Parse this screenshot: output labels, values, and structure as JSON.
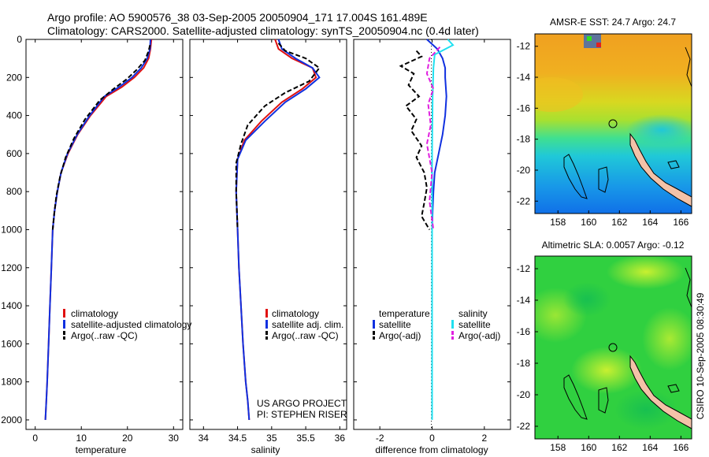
{
  "header": {
    "line1": "Argo profile: AO 5900576_38 03-Sep-2005 20050904_171 17.004S 161.489E",
    "line2": "Climatology: CARS2000. Satellite-adjusted climatology: synTS_20050904.nc (0.4d later)"
  },
  "colors": {
    "climatology": "#e01010",
    "satellite": "#1030e0",
    "argo": "#000000",
    "salinity_satellite": "#20e0f0",
    "salinity_argo": "#e020e0"
  },
  "footer": {
    "project": "US ARGO PROJECT",
    "pi": "PI: STEPHEN RISER",
    "stamp": "CSIRO 10-Sep-2005 08:30:49"
  },
  "chart_data": [
    {
      "type": "line",
      "title": "",
      "xlabel": "temperature",
      "ylabel": "",
      "xlim": [
        -2,
        32
      ],
      "ylim": [
        2050,
        0
      ],
      "xticks": [
        0,
        10,
        20,
        30
      ],
      "yticks": [
        0,
        200,
        400,
        600,
        800,
        1000,
        1200,
        1400,
        1600,
        1800,
        2000
      ],
      "legend": [
        "climatology",
        "satellite-adjusted climatology",
        "Argo(..raw -QC)"
      ],
      "series": [
        {
          "name": "climatology",
          "style": "solid",
          "color_key": "climatology",
          "x": [
            25.2,
            25.0,
            24.6,
            23.5,
            21.5,
            18.8,
            15.4,
            12.0,
            9.2,
            7.1,
            5.6,
            4.8,
            4.2,
            3.8,
            3.5,
            3.2,
            2.9,
            2.6,
            2.4,
            2.2
          ],
          "y": [
            0,
            50,
            100,
            150,
            200,
            250,
            300,
            400,
            500,
            600,
            700,
            800,
            900,
            1000,
            1200,
            1400,
            1600,
            1800,
            1900,
            2000
          ]
        },
        {
          "name": "satellite-adjusted climatology",
          "style": "solid",
          "color_key": "satellite",
          "x": [
            25.0,
            24.9,
            24.3,
            23.0,
            21.0,
            18.2,
            15.0,
            11.8,
            9.1,
            7.0,
            5.6,
            4.8,
            4.2,
            3.8,
            3.5,
            3.2,
            2.9,
            2.6,
            2.4,
            2.2
          ],
          "y": [
            0,
            50,
            100,
            150,
            200,
            250,
            300,
            400,
            500,
            600,
            700,
            800,
            900,
            1000,
            1200,
            1400,
            1600,
            1800,
            1900,
            2000
          ]
        },
        {
          "name": "Argo(..raw -QC)",
          "style": "dashed",
          "color_key": "argo",
          "x": [
            24.9,
            24.6,
            23.8,
            22.0,
            19.8,
            17.0,
            14.0,
            10.8,
            8.4,
            6.6,
            5.4,
            4.6,
            4.1,
            3.8
          ],
          "y": [
            30,
            60,
            110,
            160,
            210,
            260,
            320,
            420,
            520,
            620,
            720,
            820,
            920,
            1000
          ]
        }
      ]
    },
    {
      "type": "line",
      "title": "",
      "xlabel": "salinity",
      "ylabel": "",
      "xlim": [
        33.8,
        36.1
      ],
      "ylim": [
        2050,
        0
      ],
      "xticks": [
        34,
        34.5,
        35,
        35.5,
        36
      ],
      "yticks": [],
      "legend": [
        "climatology",
        "satellite adj. clim.",
        "Argo(..raw -QC)"
      ],
      "series": [
        {
          "name": "climatology",
          "style": "solid",
          "color_key": "climatology",
          "x": [
            35.05,
            35.1,
            35.3,
            35.6,
            35.65,
            35.45,
            35.15,
            34.85,
            34.6,
            34.5,
            34.48,
            34.5,
            34.52,
            34.55,
            34.58,
            34.62,
            34.65,
            34.67
          ],
          "y": [
            0,
            50,
            100,
            150,
            200,
            260,
            330,
            430,
            530,
            630,
            800,
            1000,
            1200,
            1400,
            1600,
            1800,
            1900,
            2000
          ]
        },
        {
          "name": "satellite adj. clim.",
          "style": "solid",
          "color_key": "satellite",
          "x": [
            35.1,
            35.15,
            35.35,
            35.6,
            35.7,
            35.5,
            35.2,
            34.9,
            34.62,
            34.5,
            34.48,
            34.5,
            34.52,
            34.55,
            34.58,
            34.62,
            34.65,
            34.67
          ],
          "y": [
            0,
            50,
            100,
            150,
            200,
            260,
            330,
            430,
            530,
            630,
            800,
            1000,
            1200,
            1400,
            1600,
            1800,
            1900,
            2000
          ]
        },
        {
          "name": "Argo(..raw -QC)",
          "style": "dashed",
          "color_key": "argo",
          "x": [
            35.1,
            35.2,
            35.5,
            35.7,
            35.55,
            35.2,
            34.9,
            34.65,
            34.55,
            34.48,
            34.48,
            34.5
          ],
          "y": [
            20,
            60,
            100,
            150,
            220,
            280,
            350,
            450,
            550,
            650,
            800,
            1000
          ]
        }
      ]
    },
    {
      "type": "line",
      "title": "",
      "xlabel": "difference from climatology",
      "ylabel": "",
      "xlim": [
        -3,
        3
      ],
      "ylim": [
        2050,
        0
      ],
      "xticks": [
        -2,
        0,
        2
      ],
      "yticks": [],
      "legend": [
        "temperature",
        "satellite",
        "Argo(-adj)",
        "salinity",
        "satellite",
        "Argo(-adj)"
      ],
      "series": [
        {
          "name": "temperature satellite",
          "style": "solid",
          "color_key": "satellite",
          "x": [
            -0.2,
            0.2,
            0.4,
            0.5,
            0.5,
            0.55,
            0.5,
            0.4,
            0.25,
            0.1,
            0.05,
            0.02,
            0.0,
            0.0,
            0.0
          ],
          "y": [
            0,
            50,
            100,
            150,
            200,
            300,
            400,
            500,
            600,
            700,
            800,
            900,
            1000,
            1200,
            1250
          ]
        },
        {
          "name": "temperature Argo(-adj)",
          "style": "dashed",
          "color_key": "argo",
          "x": [
            -0.6,
            -0.4,
            -1.2,
            -0.7,
            -0.9,
            -0.5,
            -1.0,
            -0.6,
            -0.8,
            -0.4,
            -0.6,
            -0.3,
            -0.2,
            -0.3,
            -0.4,
            -0.1
          ],
          "y": [
            60,
            90,
            140,
            180,
            240,
            300,
            350,
            420,
            480,
            560,
            620,
            700,
            780,
            860,
            930,
            1000
          ]
        },
        {
          "name": "salinity satellite",
          "style": "solid",
          "color_key": "salinity_satellite",
          "x": [
            0.6,
            0.8,
            0.1,
            0.05,
            0.02,
            0.0,
            0.0,
            0.0,
            0.0,
            0.0
          ],
          "y": [
            0,
            30,
            80,
            150,
            300,
            600,
            1000,
            1400,
            1800,
            2000
          ]
        },
        {
          "name": "salinity Argo(-adj)",
          "style": "dashed",
          "color_key": "salinity_argo",
          "x": [
            0.3,
            -0.1,
            -0.2,
            0.05,
            -0.15,
            -0.05,
            -0.2,
            0.0,
            -0.1,
            0.05
          ],
          "y": [
            40,
            100,
            180,
            260,
            340,
            450,
            550,
            700,
            850,
            1000
          ]
        }
      ]
    },
    {
      "type": "heatmap",
      "title": "AMSR-E SST: 24.7 Argo: 24.7",
      "xlabel": "",
      "ylabel": "",
      "xlim": [
        156.5,
        166.7
      ],
      "ylim": [
        -22.8,
        -11.2
      ],
      "xticks": [
        158,
        160,
        162,
        164,
        166
      ],
      "yticks": [
        -12,
        -14,
        -16,
        -18,
        -20,
        -22
      ],
      "profile_location": [
        161.489,
        -17.004
      ]
    },
    {
      "type": "heatmap",
      "title": "Altimetric SLA: 0.0057 Argo: -0.12",
      "xlabel": "",
      "ylabel": "",
      "xlim": [
        156.5,
        166.7
      ],
      "ylim": [
        -22.8,
        -11.2
      ],
      "xticks": [
        158,
        160,
        162,
        164,
        166
      ],
      "yticks": [
        -12,
        -14,
        -16,
        -18,
        -20,
        -22
      ],
      "profile_location": [
        161.489,
        -17.004
      ]
    }
  ]
}
